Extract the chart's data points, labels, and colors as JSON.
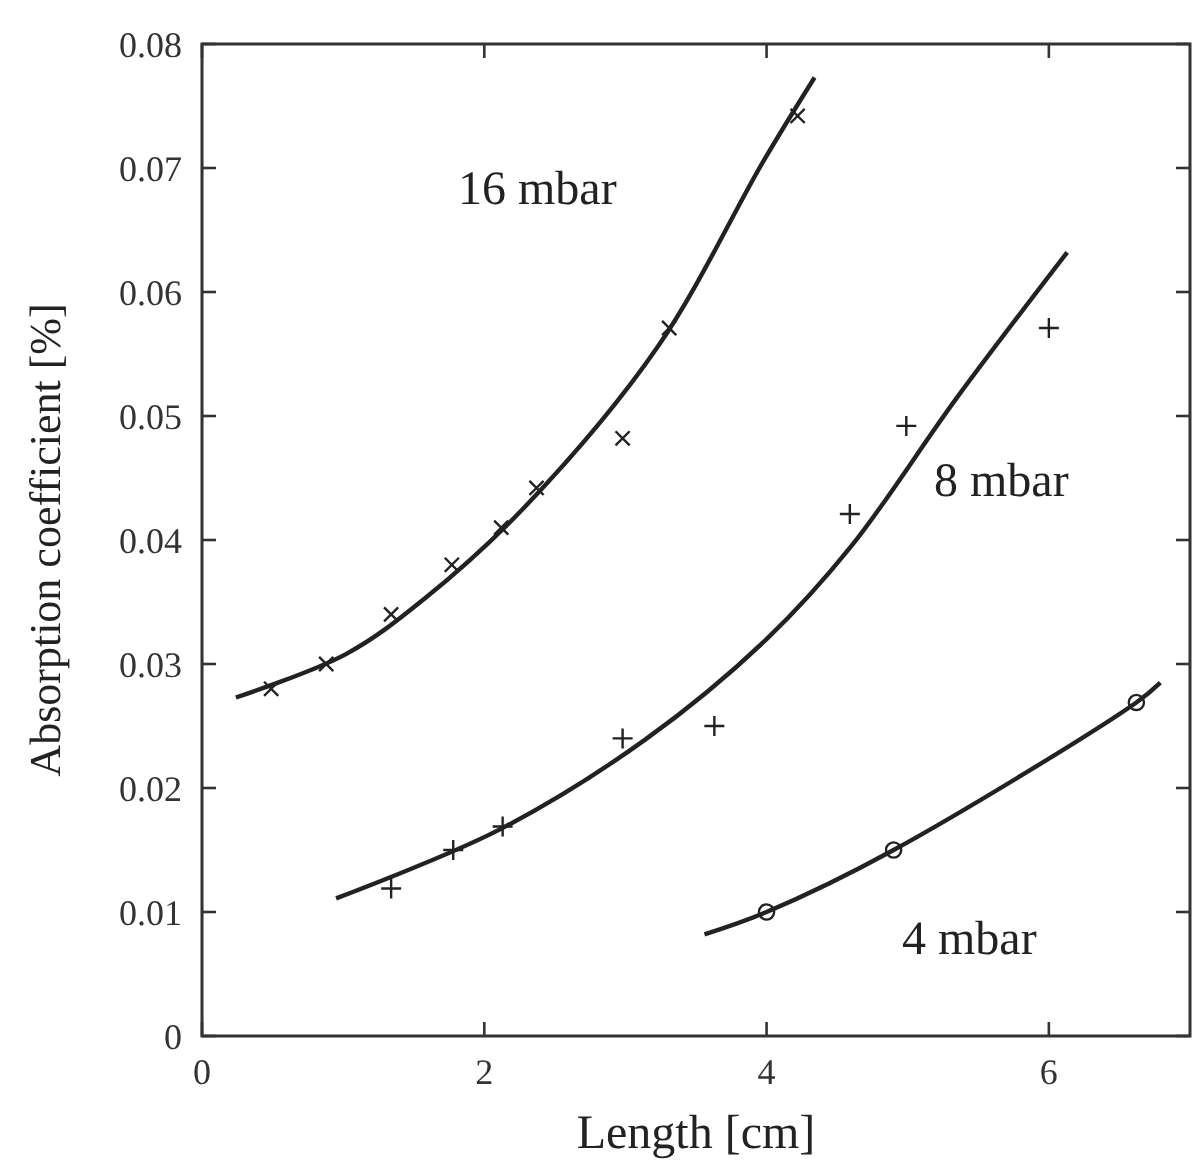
{
  "chart_data": {
    "type": "scatter",
    "xlabel": "Length [cm]",
    "ylabel": "Absorption coefficient [%]",
    "xlim": [
      0,
      7
    ],
    "ylim": [
      0,
      0.08
    ],
    "xticks": [
      0,
      2,
      4,
      6
    ],
    "yticks": [
      0,
      0.01,
      0.02,
      0.03,
      0.04,
      0.05,
      0.06,
      0.07,
      0.08
    ],
    "grid": false,
    "series": [
      {
        "name": "16 mbar",
        "marker": "cross",
        "color": "#222222",
        "x": [
          0.49,
          0.88,
          1.34,
          1.77,
          2.12,
          2.37,
          2.98,
          3.31,
          4.22
        ],
        "values": [
          0.028,
          0.03,
          0.034,
          0.038,
          0.041,
          0.0442,
          0.0482,
          0.0571,
          0.0742
        ]
      },
      {
        "type": "line",
        "marker": "none",
        "color": "#222222",
        "x": [
          0.24,
          1.02,
          1.58,
          2.29,
          3.23,
          3.98,
          4.34
        ],
        "values": [
          0.0273,
          0.0308,
          0.0353,
          0.0427,
          0.0556,
          0.0706,
          0.0773
        ]
      },
      {
        "name": "8 mbar",
        "marker": "cross",
        "color": "#222222",
        "x": [
          1.34,
          1.78,
          2.13,
          2.98,
          3.63,
          4.59,
          4.99,
          6.0
        ],
        "values": [
          0.0119,
          0.015,
          0.0169,
          0.024,
          0.025,
          0.0421,
          0.0492,
          0.0571
        ]
      },
      {
        "type": "line",
        "marker": "none",
        "color": "#222222",
        "x": [
          0.95,
          2.1,
          3.14,
          4.0,
          4.6,
          5.35,
          6.13
        ],
        "values": [
          0.0111,
          0.0166,
          0.0239,
          0.032,
          0.0395,
          0.0515,
          0.0632
        ]
      },
      {
        "name": "4 mbar",
        "marker": "circle",
        "color": "#222222",
        "x": [
          4.0,
          4.9,
          6.62
        ],
        "values": [
          0.01,
          0.015,
          0.0269
        ]
      },
      {
        "type": "line",
        "marker": "none",
        "color": "#222222",
        "x": [
          3.56,
          4.0,
          4.9,
          6.62,
          6.79
        ],
        "values": [
          0.0082,
          0.01,
          0.015,
          0.0269,
          0.0285
        ]
      }
    ]
  }
}
